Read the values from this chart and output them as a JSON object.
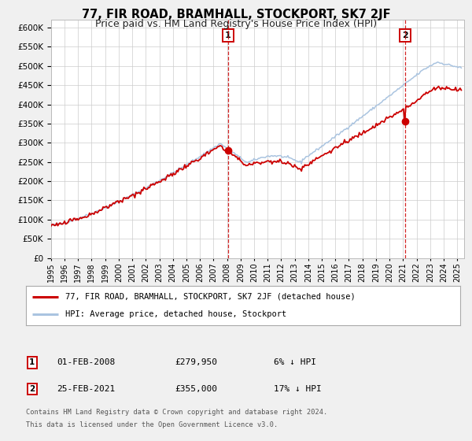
{
  "title": "77, FIR ROAD, BRAMHALL, STOCKPORT, SK7 2JF",
  "subtitle": "Price paid vs. HM Land Registry's House Price Index (HPI)",
  "legend_line1": "77, FIR ROAD, BRAMHALL, STOCKPORT, SK7 2JF (detached house)",
  "legend_line2": "HPI: Average price, detached house, Stockport",
  "annotation1_date": "01-FEB-2008",
  "annotation1_price": "£279,950",
  "annotation1_hpi": "6% ↓ HPI",
  "annotation2_date": "25-FEB-2021",
  "annotation2_price": "£355,000",
  "annotation2_hpi": "17% ↓ HPI",
  "footer_line1": "Contains HM Land Registry data © Crown copyright and database right 2024.",
  "footer_line2": "This data is licensed under the Open Government Licence v3.0.",
  "sale1_year": 2008.08,
  "sale1_value": 279950,
  "sale2_year": 2021.15,
  "sale2_value": 355000,
  "ylim_min": 0,
  "ylim_max": 620000,
  "xlim_min": 1995.0,
  "xlim_max": 2025.5,
  "red_line_color": "#cc0000",
  "blue_line_color": "#aac4e0",
  "vline_color": "#cc0000",
  "background_color": "#f0f0f0",
  "plot_bg_color": "#ffffff",
  "grid_color": "#cccccc",
  "title_fontsize": 10.5,
  "subtitle_fontsize": 9
}
